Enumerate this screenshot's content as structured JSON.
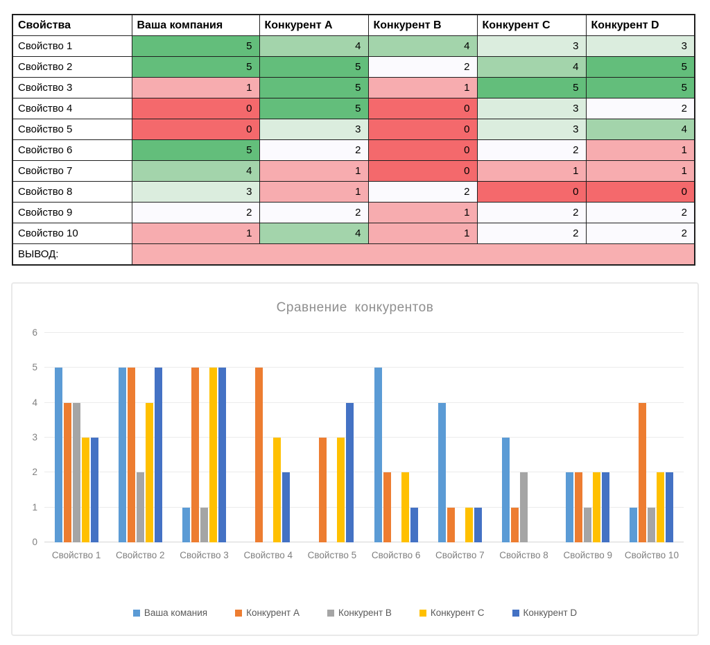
{
  "table": {
    "columns": [
      "Свойства",
      "Ваша компания",
      "Конкурент A",
      "Конкурент B",
      "Конкурент C",
      "Конкурент D"
    ],
    "rows": [
      {
        "label": "Свойство 1",
        "values": [
          5,
          4,
          4,
          3,
          3
        ]
      },
      {
        "label": "Свойство 2",
        "values": [
          5,
          5,
          2,
          4,
          5
        ]
      },
      {
        "label": "Свойство 3",
        "values": [
          1,
          5,
          1,
          5,
          5
        ]
      },
      {
        "label": "Свойство 4",
        "values": [
          0,
          5,
          0,
          3,
          2
        ]
      },
      {
        "label": "Свойство 5",
        "values": [
          0,
          3,
          0,
          3,
          4
        ]
      },
      {
        "label": "Свойство 6",
        "values": [
          5,
          2,
          0,
          2,
          1
        ]
      },
      {
        "label": "Свойство 7",
        "values": [
          4,
          1,
          0,
          1,
          1
        ]
      },
      {
        "label": "Свойство 8",
        "values": [
          3,
          1,
          2,
          0,
          0
        ]
      },
      {
        "label": "Свойство 9",
        "values": [
          2,
          2,
          1,
          2,
          2
        ]
      },
      {
        "label": "Свойство 10",
        "values": [
          1,
          4,
          1,
          2,
          2
        ]
      }
    ],
    "conclusion_label": "ВЫВОД:",
    "value_colors": {
      "0": "#F4696C",
      "1": "#F7ACAF",
      "2": "#FBFAFE",
      "3": "#DBEDDE",
      "4": "#A3D4AB",
      "5": "#63BE7B"
    },
    "conclusion_color": "#F8AFB1"
  },
  "chart_data": {
    "type": "bar",
    "title": "Сравнение конкурентов",
    "categories": [
      "Свойство 1",
      "Свойство 2",
      "Свойство 3",
      "Свойство 4",
      "Свойство 5",
      "Свойство 6",
      "Свойство 7",
      "Свойство 8",
      "Свойство 9",
      "Свойство 10"
    ],
    "series": [
      {
        "name": "Ваша комания",
        "color": "#5B9BD5",
        "values": [
          5,
          5,
          1,
          0,
          0,
          5,
          4,
          3,
          2,
          1
        ]
      },
      {
        "name": "Конкурент A",
        "color": "#ED7D31",
        "values": [
          4,
          5,
          5,
          5,
          3,
          2,
          1,
          1,
          2,
          4
        ]
      },
      {
        "name": "Конкурент B",
        "color": "#A5A5A5",
        "values": [
          4,
          2,
          1,
          0,
          0,
          0,
          0,
          2,
          1,
          1
        ]
      },
      {
        "name": "Конкурент C",
        "color": "#FFC000",
        "values": [
          3,
          4,
          5,
          3,
          3,
          2,
          1,
          0,
          2,
          2
        ]
      },
      {
        "name": "Конкурент D",
        "color": "#4472C4",
        "values": [
          3,
          5,
          5,
          2,
          4,
          1,
          1,
          0,
          2,
          2
        ]
      }
    ],
    "ylim": [
      0,
      6
    ],
    "yticks": [
      0,
      1,
      2,
      3,
      4,
      5,
      6
    ],
    "grid": true,
    "legend_position": "bottom",
    "xlabel": "",
    "ylabel": ""
  }
}
